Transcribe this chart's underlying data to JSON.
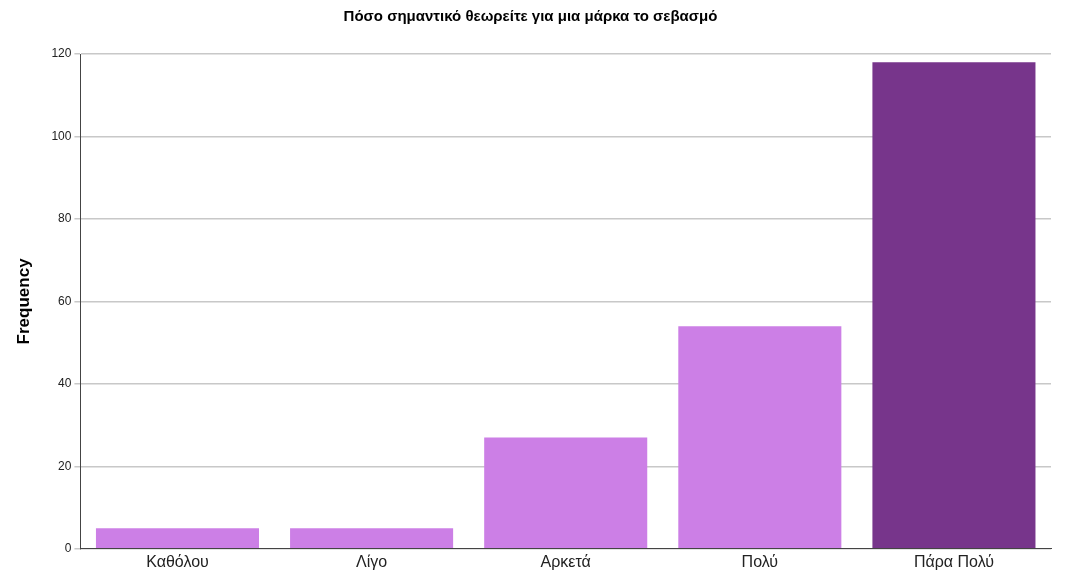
{
  "chart_data": {
    "type": "bar",
    "title": "Πόσο σημαντικό θεωρείτε για μια μάρκα το σεβασμό",
    "ylabel": "Frequency",
    "categories": [
      "Καθόλου",
      "Λίγο",
      "Αρκετά",
      "Πολύ",
      "Πάρα Πολύ"
    ],
    "values": [
      5,
      5,
      27,
      54,
      118
    ],
    "colors": [
      "#cc7fe6",
      "#cc7fe6",
      "#cc7fe6",
      "#cc7fe6",
      "#77358b"
    ],
    "ylim": [
      0,
      120
    ],
    "yticks": [
      0,
      20,
      40,
      60,
      80,
      100,
      120
    ],
    "grid": "y"
  }
}
